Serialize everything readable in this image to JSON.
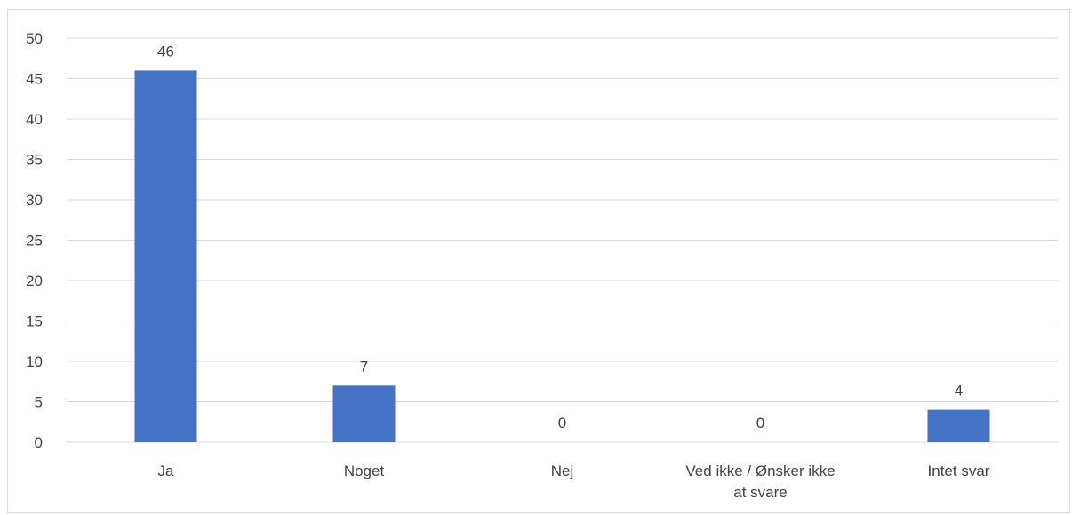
{
  "chart_data": {
    "type": "bar",
    "categories": [
      [
        "Ja"
      ],
      [
        "Noget"
      ],
      [
        "Nej"
      ],
      [
        "Ved ikke / Ønsker ikke",
        "at svare"
      ],
      [
        "Intet svar"
      ]
    ],
    "values": [
      46,
      7,
      0,
      0,
      4
    ],
    "ylim": [
      0,
      50
    ],
    "yticks": [
      0,
      5,
      10,
      15,
      20,
      25,
      30,
      35,
      40,
      45,
      50
    ],
    "grid": true,
    "legend": "none",
    "bar_color": "#4472c4"
  }
}
